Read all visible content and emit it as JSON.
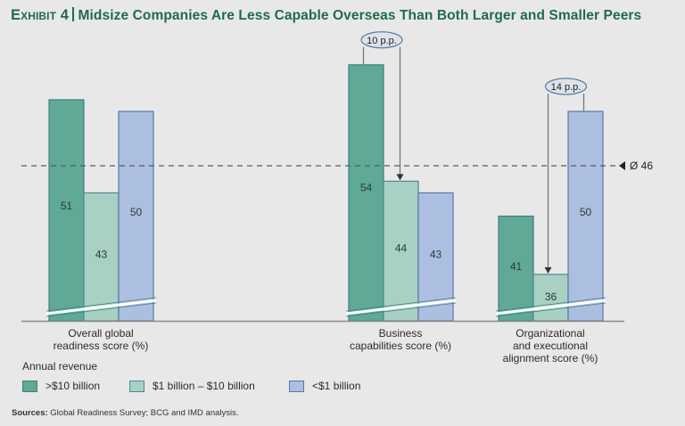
{
  "title": {
    "exhibit": "Exhibit 4",
    "text": "Midsize Companies Are Less Capable Overseas Than Both Larger and Smaller Peers"
  },
  "colors": {
    "large": "#5fa996",
    "large_border": "#3e7f84",
    "mid": "#a8d0c3",
    "mid_border": "#4a8a94",
    "small": "#adbfe0",
    "small_border": "#5677a8",
    "title": "#1f6b4a",
    "background": "#e8e8e9"
  },
  "chart_data": {
    "type": "bar",
    "title": "Midsize Companies Are Less Capable Overseas Than Both Larger and Smaller Peers",
    "categories": [
      "Overall global readiness score (%)",
      "Business capabilities score (%)",
      "Organizational and executional alignment score (%)"
    ],
    "category_lines": [
      [
        "Overall global",
        "readiness score (%)"
      ],
      [
        "Business",
        "capabilities score (%)"
      ],
      [
        "Organizational",
        "and executional",
        "alignment score (%)"
      ]
    ],
    "series": [
      {
        "name": ">$10 billion",
        "values": [
          51,
          54,
          41
        ]
      },
      {
        "name": "$1 billion – $10 billion",
        "values": [
          43,
          44,
          36
        ]
      },
      {
        "name": "<$1 billion",
        "values": [
          50,
          43,
          50
        ]
      }
    ],
    "reference_line": {
      "value": 46,
      "label": "Ø 46"
    },
    "annotations": [
      {
        "text": "10 p.p.",
        "category": 1,
        "from_series": 0,
        "to_series": 1
      },
      {
        "text": "14 p.p.",
        "category": 2,
        "from_series": 2,
        "to_series": 1
      }
    ],
    "axis_break": true,
    "xlabel": "",
    "ylabel": "",
    "grid": false,
    "legend_title": "Annual revenue",
    "legend_position": "bottom-left"
  },
  "legend": {
    "title": "Annual revenue",
    "items": [
      ">$10 billion",
      "$1 billion – $10 billion",
      "<$1 billion"
    ]
  },
  "sources": {
    "label": "Sources:",
    "text": "Global Readiness Survey; BCG and IMD analysis."
  }
}
